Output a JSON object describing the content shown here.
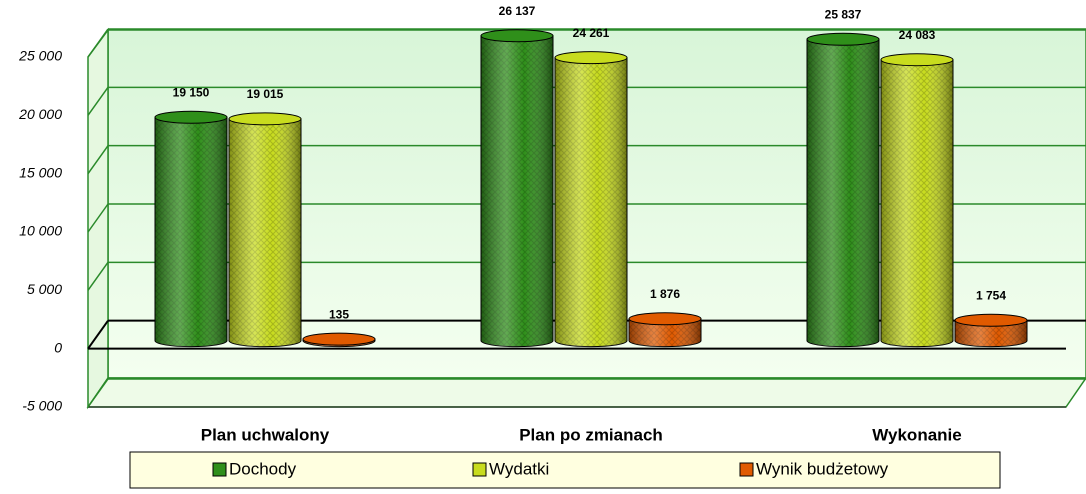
{
  "chart_data": {
    "type": "bar",
    "categories": [
      "Plan uchwalony",
      "Plan po zmianach",
      "Wykonanie"
    ],
    "series": [
      {
        "name": "Dochody",
        "color": "#2f8f1a",
        "values": [
          19150,
          26137,
          25837
        ],
        "value_labels": [
          "19 150",
          "26 137",
          "25 837"
        ]
      },
      {
        "name": "Wydatki",
        "color": "#c8dc1e",
        "values": [
          19015,
          24261,
          24083
        ],
        "value_labels": [
          "19 015",
          "24 261",
          "24 083"
        ]
      },
      {
        "name": "Wynik budżetowy",
        "color": "#e05a00",
        "values": [
          135,
          1876,
          1754
        ],
        "value_labels": [
          "135",
          "1 876",
          "1 754"
        ]
      }
    ],
    "ylim": [
      -5000,
      25000
    ],
    "yticks": [
      {
        "value": -5000,
        "label": "-5 000"
      },
      0,
      {
        "value": 5000,
        "label": "5 000"
      },
      {
        "value": 10000,
        "label": "10 000"
      },
      {
        "value": 15000,
        "label": "15 000"
      },
      {
        "value": 20000,
        "label": "20 000"
      },
      {
        "value": 25000,
        "label": "25 000"
      }
    ],
    "grid": true,
    "legend": "bottom"
  }
}
